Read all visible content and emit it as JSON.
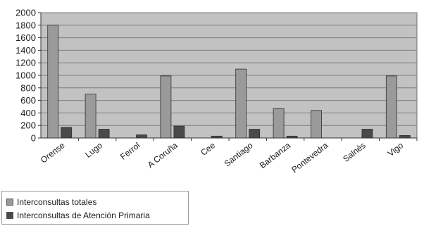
{
  "chart_data": {
    "type": "bar",
    "title": "",
    "xlabel": "",
    "ylabel": "",
    "ylim": [
      0,
      2000
    ],
    "yticks": [
      0,
      200,
      400,
      600,
      800,
      1000,
      1200,
      1400,
      1600,
      1800,
      2000
    ],
    "grid": true,
    "legend_position": "bottom-left",
    "categories": [
      "Orense",
      "Lugo",
      "Ferrol",
      "A Coruña",
      "Cee",
      "Santiago",
      "Barbanza",
      "Pontevedra",
      "Salnés",
      "Vigo"
    ],
    "series": [
      {
        "name": "Interconsultas totales",
        "color": "#9a9a9a",
        "values": [
          1800,
          700,
          0,
          990,
          0,
          1100,
          470,
          440,
          0,
          990
        ]
      },
      {
        "name": "Interconsultas de Atención Primaria",
        "color": "#4a4a4a",
        "values": [
          170,
          140,
          50,
          190,
          30,
          140,
          30,
          0,
          140,
          40
        ]
      }
    ],
    "plot_background": "#c2c2c2",
    "gridline_color": "#7d7d7d"
  }
}
